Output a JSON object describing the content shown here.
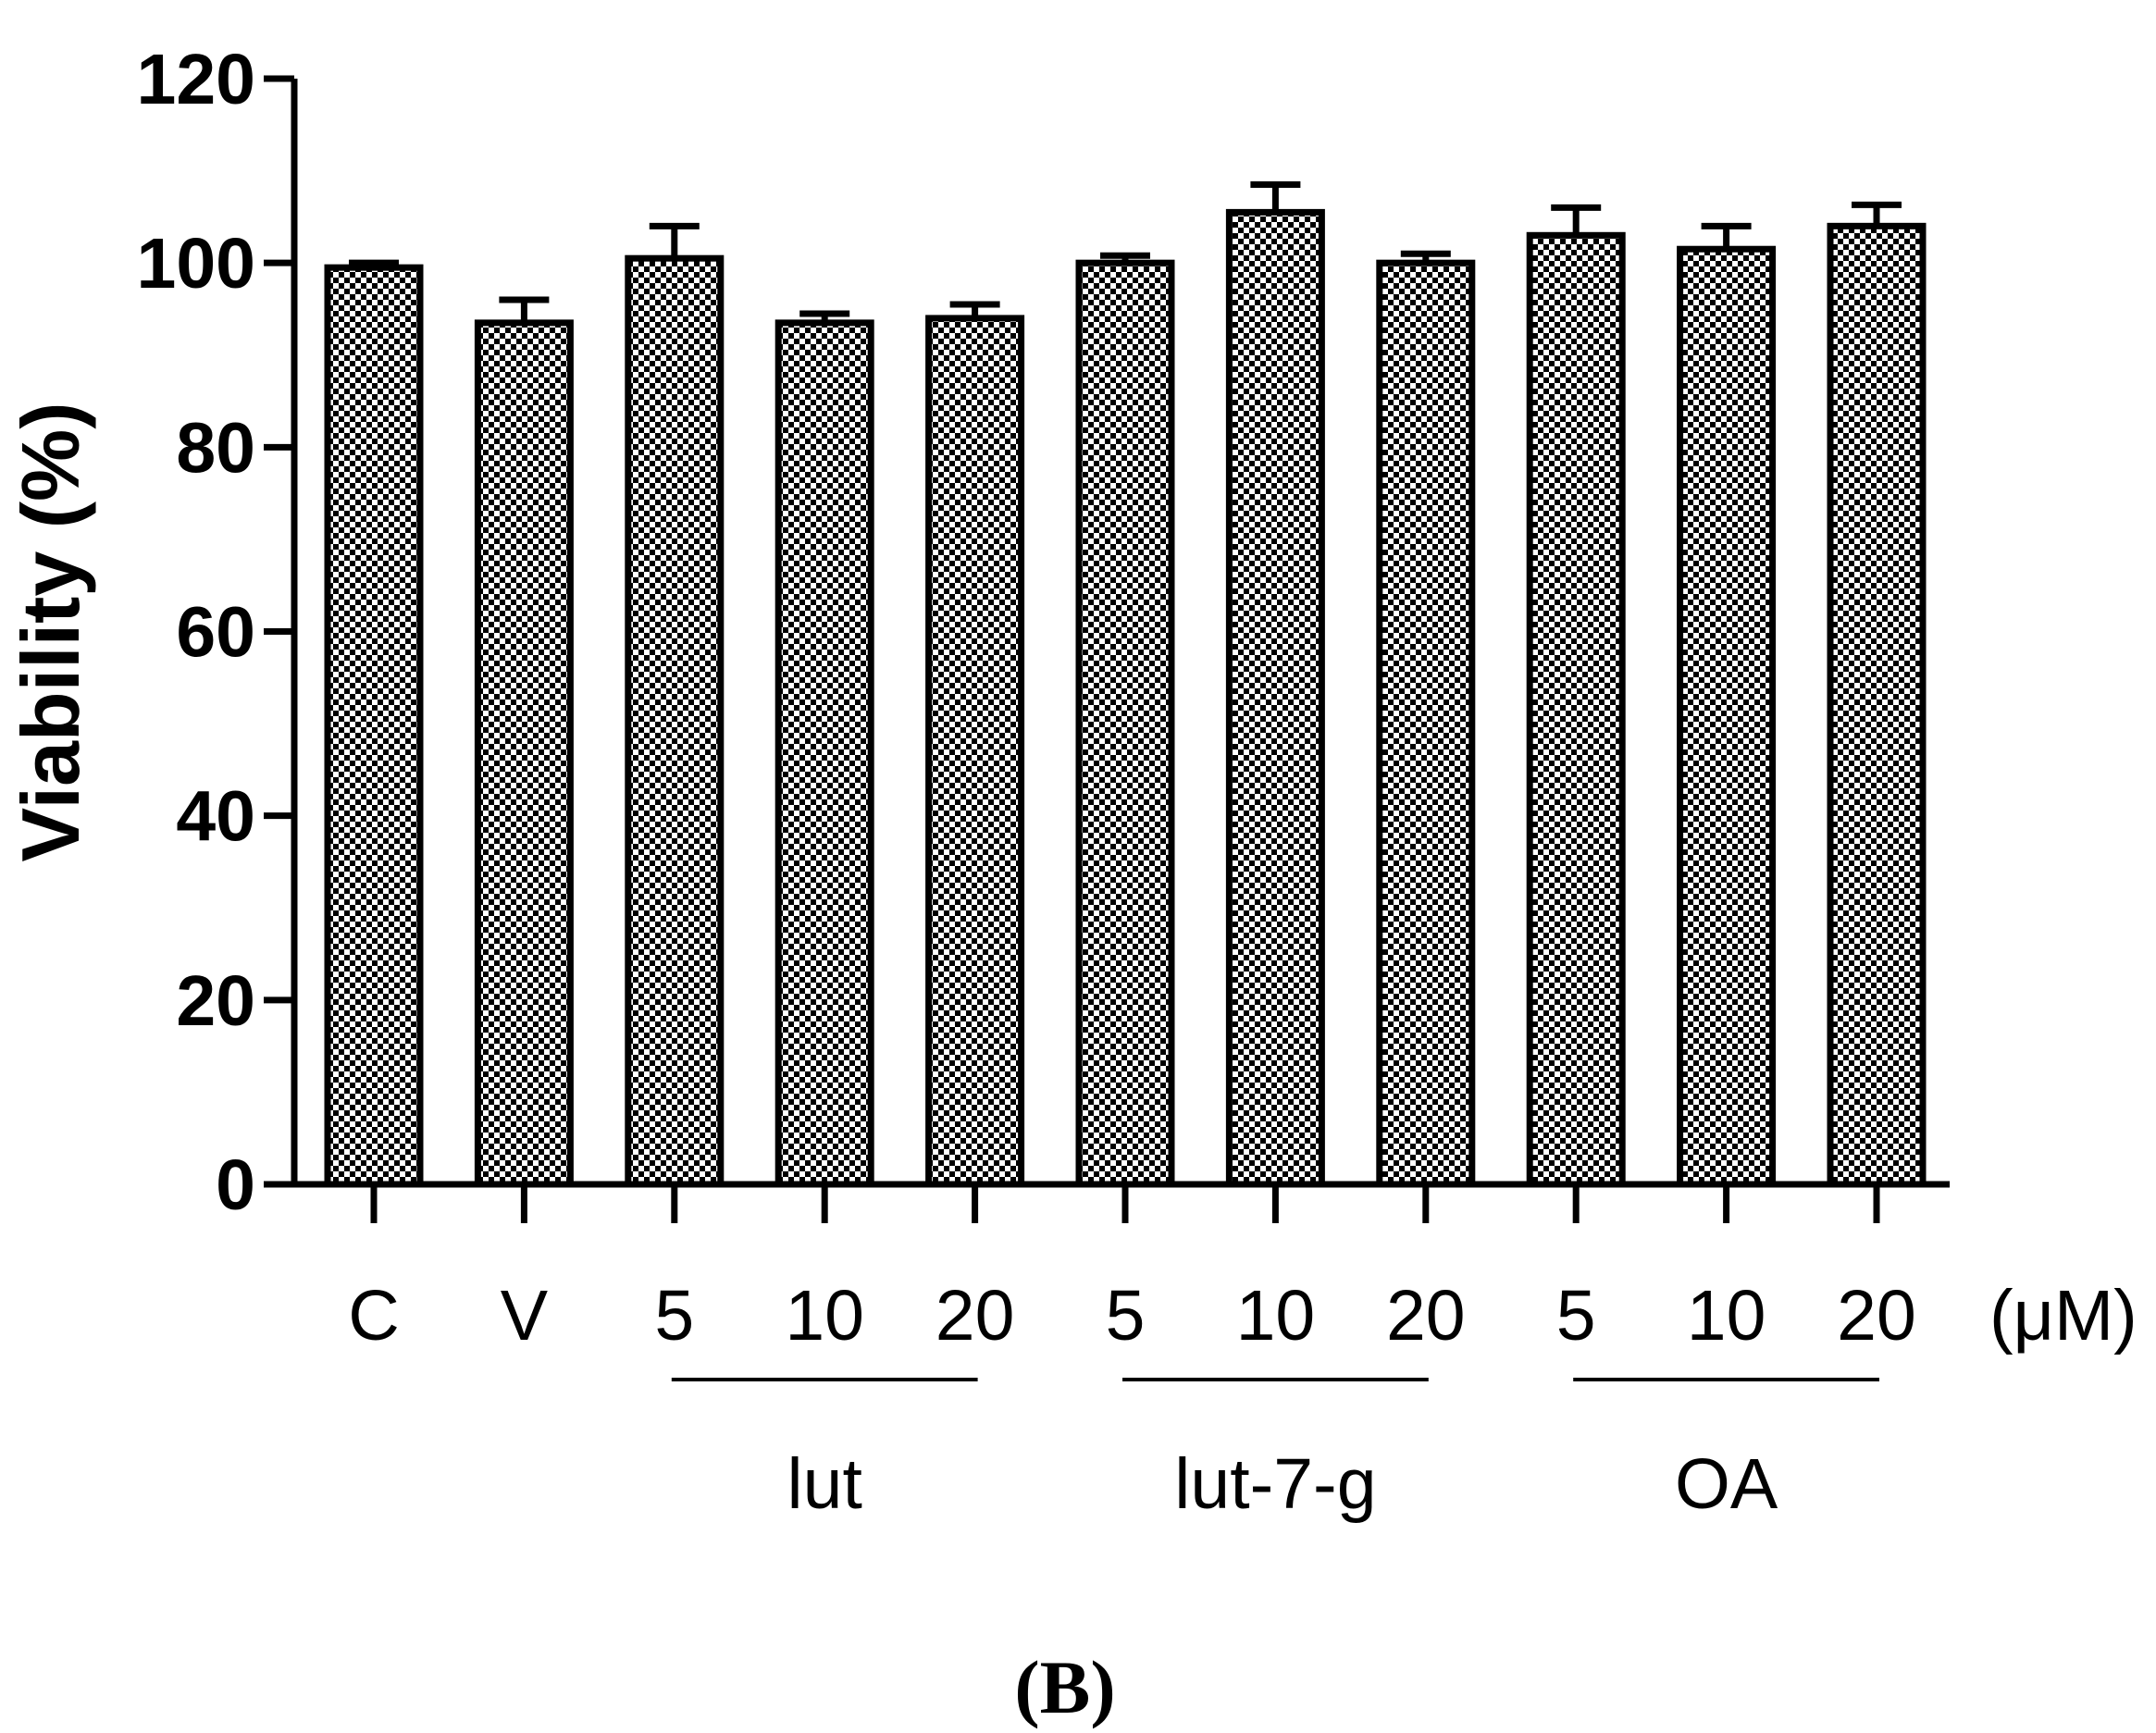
{
  "chart_data": {
    "type": "bar",
    "ylabel": "Viability (%)",
    "ylim": [
      0,
      120
    ],
    "yticks": [
      0,
      20,
      40,
      60,
      80,
      100,
      120
    ],
    "categories": [
      "C",
      "V",
      "5",
      "10",
      "20",
      "5",
      "10",
      "20",
      "5",
      "10",
      "20"
    ],
    "values": [
      99.5,
      93.5,
      100.5,
      93.5,
      94,
      100,
      105.5,
      100,
      103,
      101.5,
      104
    ],
    "errors": [
      0.5,
      2.5,
      3.5,
      1.0,
      1.5,
      0.8,
      3.0,
      1.0,
      3.0,
      2.5,
      2.3
    ],
    "unit_label": "(μM)",
    "groups": [
      {
        "label": "lut",
        "start": 2,
        "end": 4
      },
      {
        "label": "lut-7-g",
        "start": 5,
        "end": 7
      },
      {
        "label": "OA",
        "start": 8,
        "end": 10
      }
    ],
    "panel_label": "(B)",
    "bar_pattern": "checkered",
    "grid": false
  }
}
